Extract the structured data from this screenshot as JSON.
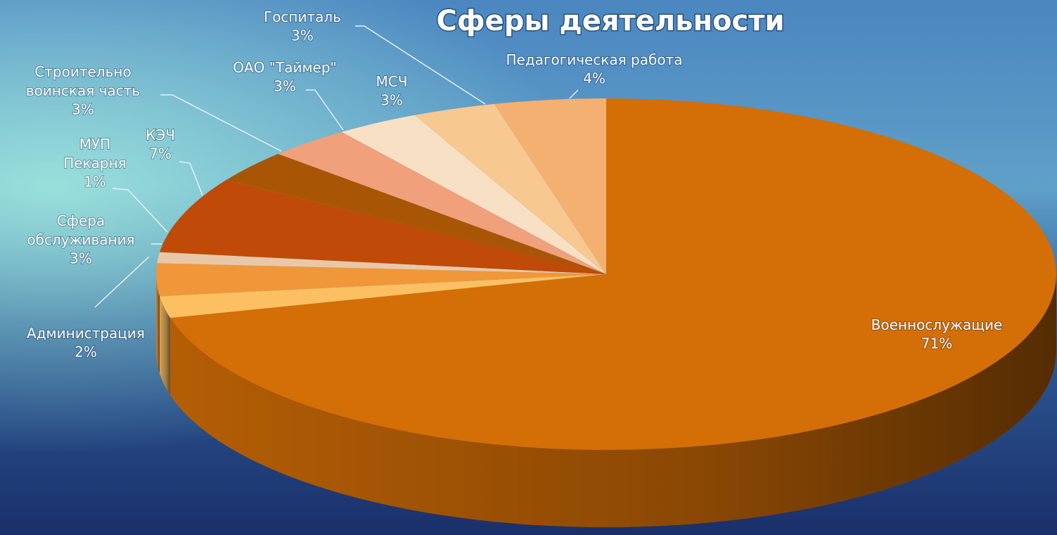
{
  "chart_data": {
    "type": "pie3d",
    "title": "Сферы деятельности",
    "categories": [
      "Военнослужащие",
      "Администрация",
      "Сфера\nобслуживания",
      "МУП\nПекарня",
      "КЭЧ",
      "Строительно\nвоинская часть",
      "ОАО \"Таймер\"",
      "МСЧ",
      "Госпиталь",
      "Педагогическая работа"
    ],
    "values": [
      71,
      2,
      3,
      1,
      7,
      3,
      3,
      3,
      3,
      4
    ],
    "value_labels": [
      "71%",
      "2%",
      "3%",
      "1%",
      "7%",
      "3%",
      "3%",
      "3%",
      "3%",
      "4%"
    ],
    "colors": [
      "#d46e06",
      "#fcc062",
      "#f0973a",
      "#e8c8a8",
      "#c04a08",
      "#a85606",
      "#f0a07a",
      "#f8e0c4",
      "#f7c890",
      "#f4b070"
    ]
  }
}
